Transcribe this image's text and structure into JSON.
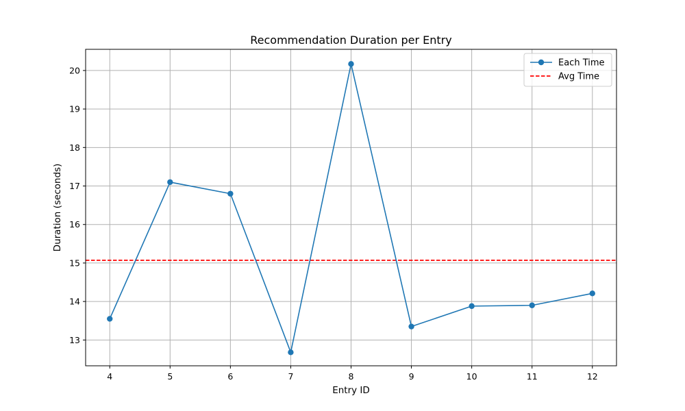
{
  "chart_data": {
    "type": "line",
    "title": "Recommendation Duration per Entry",
    "xlabel": "Entry ID",
    "ylabel": "Duration (seconds)",
    "x": [
      4,
      5,
      6,
      7,
      8,
      9,
      10,
      11,
      12
    ],
    "xlim": [
      3.6,
      12.4
    ],
    "ylim": [
      12.33,
      20.55
    ],
    "yticks": [
      13,
      14,
      15,
      16,
      17,
      18,
      19,
      20
    ],
    "grid": true,
    "legend_position": "top-right",
    "series": [
      {
        "name": "Each Time",
        "style": "line-with-markers",
        "color": "#1f77b4",
        "values": [
          13.55,
          17.1,
          16.8,
          12.68,
          20.17,
          13.35,
          13.88,
          13.9,
          14.21
        ]
      },
      {
        "name": "Avg Time",
        "style": "dashed-horizontal",
        "color": "#ff0000",
        "value": 15.07
      }
    ]
  }
}
